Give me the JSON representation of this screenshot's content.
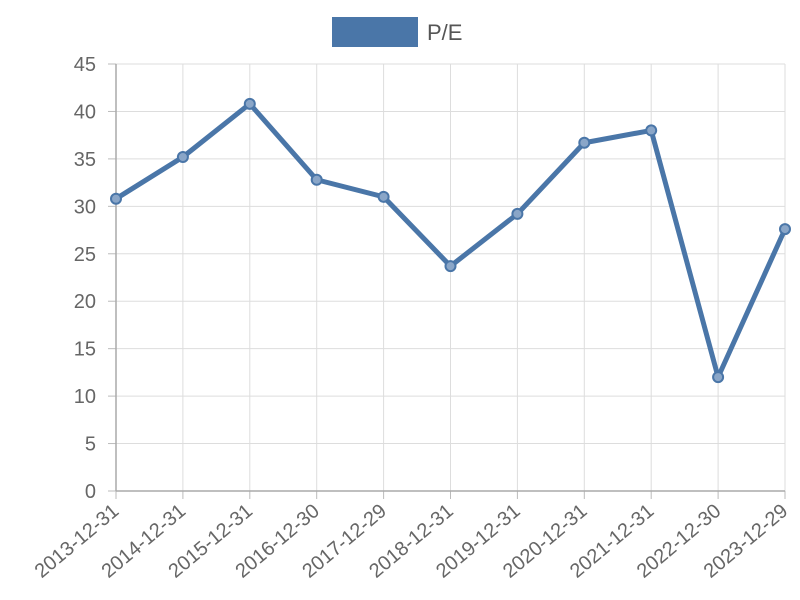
{
  "chart_data": {
    "type": "line",
    "title": "",
    "xlabel": "",
    "ylabel": "",
    "categories": [
      "2013-12-31",
      "2014-12-31",
      "2015-12-31",
      "2016-12-30",
      "2017-12-29",
      "2018-12-31",
      "2019-12-31",
      "2020-12-31",
      "2021-12-31",
      "2022-12-30",
      "2023-12-29"
    ],
    "series": [
      {
        "name": "P/E",
        "color": "#4a76a8",
        "values": [
          30.8,
          35.2,
          40.8,
          32.8,
          31.0,
          23.7,
          29.2,
          36.7,
          38.0,
          12.0,
          27.6
        ]
      }
    ],
    "ylim": [
      0,
      45
    ],
    "y_ticks": [
      0,
      5,
      10,
      15,
      20,
      25,
      30,
      35,
      40,
      45
    ],
    "grid": true,
    "legend_position": "top-center"
  }
}
